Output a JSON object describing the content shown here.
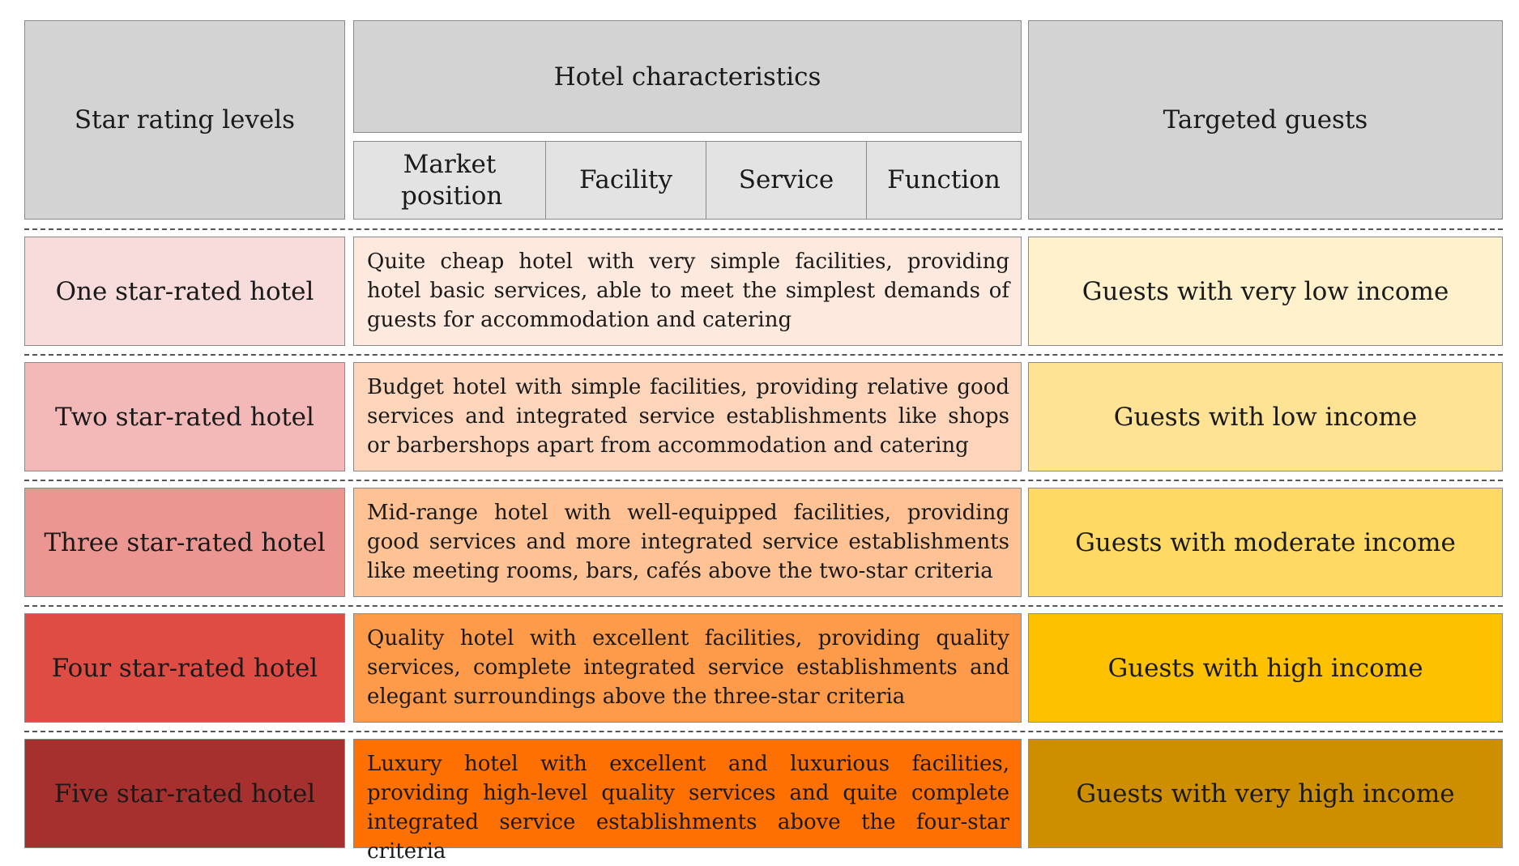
{
  "header": {
    "star_levels": "Star rating levels",
    "hotel_characteristics": "Hotel characteristics",
    "targeted_guests": "Targeted guests",
    "sub_columns": [
      "Market position",
      "Facility",
      "Service",
      "Function"
    ]
  },
  "rows": [
    {
      "level": "One star-rated hotel",
      "description": "Quite cheap hotel with very simple facilities, providing hotel basic services, able to meet the simplest demands of guests for accommodation and catering",
      "guests": "Guests with very low income",
      "level_color": "#f8dcdc",
      "desc_color": "#fde9de",
      "guest_color": "#fff1cc"
    },
    {
      "level": "Two star-rated hotel",
      "description": "Budget hotel with simple facilities, providing relative good services and integrated service establishments like shops or barbershops apart from accommodation and catering",
      "guests": "Guests with low income",
      "level_color": "#f3b9b9",
      "desc_color": "#fdd5bb",
      "guest_color": "#fee395"
    },
    {
      "level": "Three star-rated hotel",
      "description": "Mid-range hotel with well-equipped facilities, providing good services and more integrated service establishments like meeting rooms, bars, cafés above the two-star criteria",
      "guests": "Guests with moderate income",
      "level_color": "#ec9691",
      "desc_color": "#fec294",
      "guest_color": "#fed964"
    },
    {
      "level": "Four star-rated hotel",
      "description": "Quality hotel with excellent facilities, providing quality services, complete integrated service establishments and elegant surroundings above the three-star criteria",
      "guests": "Guests with high income",
      "level_color": "#df4c44",
      "desc_color": "#fe9b4b",
      "guest_color": "#fdc100"
    },
    {
      "level": "Five star-rated hotel",
      "description": "Luxury hotel with excellent and luxurious facilities, providing high-level quality services and quite complete integrated service establishments above the four-star criteria",
      "guests": "Guests with very high income",
      "level_color": "#a6302e",
      "desc_color": "#fe7001",
      "guest_color": "#cd8f00"
    }
  ]
}
